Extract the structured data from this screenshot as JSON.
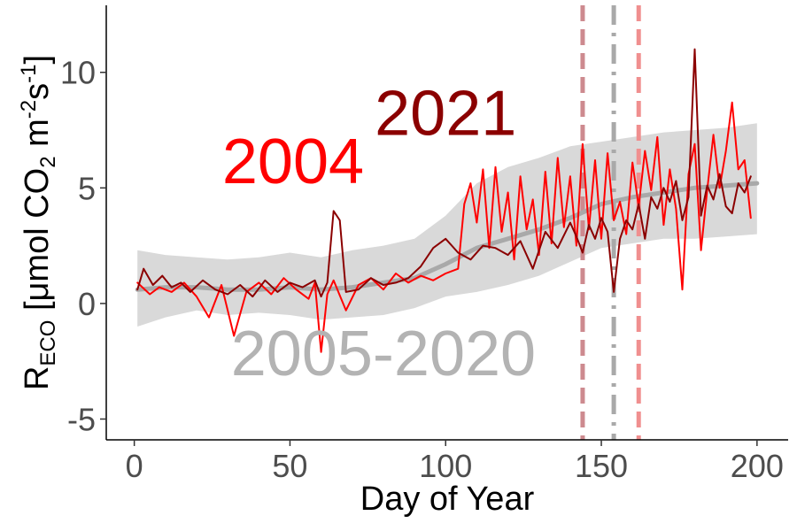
{
  "chart_data": {
    "type": "line",
    "xlabel": "Day of Year",
    "ylabel": {
      "main": "R",
      "sub": "ECO",
      "unit_open": " [μmol  CO",
      "co2_sub": "2",
      "unit_m": "  m",
      "m_sup": "-2",
      "unit_s": "s",
      "s_sup": "-1",
      "unit_close": "]"
    },
    "xlim": [
      -9,
      210
    ],
    "ylim": [
      -5.9,
      12.9
    ],
    "x_ticks": [
      0,
      50,
      100,
      150,
      200
    ],
    "x_tick_labels": [
      "0",
      "50",
      "100",
      "150",
      "200"
    ],
    "y_ticks": [
      -5,
      0,
      5,
      10
    ],
    "y_tick_labels": [
      "-5",
      "0",
      "5",
      "10"
    ],
    "grid": false,
    "annotations": [
      {
        "text": "2021",
        "x": 100,
        "y": 7.3,
        "color": "#8b0000"
      },
      {
        "text": "2004",
        "x": 51,
        "y": 5.2,
        "color": "#ff0000"
      },
      {
        "text": "2005-2020",
        "x": 80,
        "y": -3.1,
        "color": "#b3b3b3"
      }
    ],
    "vlines": [
      {
        "x": 144,
        "color": "#cd8a8f",
        "style": "dashed"
      },
      {
        "x": 154,
        "color": "#a9a9a9",
        "style": "dotdash"
      },
      {
        "x": 162,
        "color": "#f08f8f",
        "style": "dashed"
      }
    ],
    "band": {
      "name": "2005-2020",
      "color": "#d9d9d9",
      "x": [
        1,
        10,
        20,
        30,
        40,
        50,
        60,
        70,
        80,
        90,
        100,
        110,
        120,
        130,
        140,
        150,
        160,
        170,
        180,
        190,
        200
      ],
      "lower": [
        -1.0,
        -0.6,
        -0.3,
        -0.5,
        -0.4,
        -0.5,
        -0.7,
        -0.6,
        -0.5,
        -0.2,
        0.3,
        0.5,
        0.8,
        1.2,
        1.8,
        2.4,
        2.6,
        2.8,
        2.8,
        2.9,
        3.0
      ],
      "upper": [
        2.3,
        2.1,
        2.0,
        1.9,
        2.0,
        2.2,
        2.0,
        2.3,
        2.5,
        2.8,
        3.8,
        5.2,
        5.9,
        6.3,
        6.8,
        7.0,
        7.2,
        7.4,
        7.5,
        7.6,
        7.8
      ]
    },
    "series": [
      {
        "name": "2005-2020",
        "color": "#a9a9a9",
        "width": 5,
        "x": [
          1,
          10,
          20,
          30,
          40,
          50,
          60,
          70,
          80,
          90,
          100,
          110,
          120,
          130,
          140,
          150,
          160,
          170,
          180,
          190,
          200
        ],
        "values": [
          0.6,
          0.7,
          0.7,
          0.6,
          0.6,
          0.7,
          0.6,
          0.7,
          0.9,
          1.1,
          1.7,
          2.4,
          2.8,
          3.2,
          3.7,
          4.3,
          4.6,
          4.8,
          5.0,
          5.1,
          5.2
        ]
      },
      {
        "name": "2004",
        "color": "#ff0000",
        "width": 2,
        "x": [
          1,
          5,
          8,
          12,
          16,
          20,
          24,
          28,
          32,
          36,
          40,
          44,
          48,
          52,
          56,
          58,
          60,
          62,
          64,
          68,
          72,
          76,
          80,
          84,
          88,
          92,
          96,
          100,
          104,
          106,
          108,
          110,
          112,
          114,
          116,
          118,
          120,
          122,
          124,
          126,
          128,
          130,
          132,
          134,
          136,
          138,
          140,
          142,
          144,
          146,
          148,
          150,
          152,
          154,
          156,
          158,
          160,
          162,
          164,
          166,
          168,
          170,
          172,
          174,
          176,
          178,
          180,
          182,
          184,
          186,
          188,
          190,
          192,
          194,
          196,
          198
        ],
        "values": [
          0.9,
          0.4,
          0.7,
          0.5,
          0.9,
          0.3,
          -0.6,
          0.8,
          -1.4,
          0.5,
          0.9,
          0.4,
          1.1,
          0.6,
          0.2,
          0.9,
          -2.1,
          0.4,
          1.0,
          -0.3,
          0.8,
          1.1,
          0.6,
          1.3,
          0.9,
          1.2,
          1.0,
          1.3,
          1.5,
          4.3,
          5.2,
          3.5,
          5.8,
          2.4,
          5.9,
          3.1,
          4.8,
          1.9,
          5.5,
          3.2,
          4.5,
          2.1,
          5.7,
          2.6,
          6.3,
          3.3,
          5.5,
          2.5,
          6.9,
          3.2,
          6.2,
          2.8,
          6.5,
          3.6,
          4.4,
          3.0,
          6.1,
          4.2,
          6.6,
          4.9,
          7.2,
          3.4,
          5.8,
          4.1,
          0.6,
          5.6,
          6.9,
          2.3,
          4.9,
          7.3,
          5.0,
          6.6,
          8.7,
          5.8,
          6.2,
          3.7
        ]
      },
      {
        "name": "2021",
        "color": "#8b0000",
        "width": 2,
        "x": [
          1,
          3,
          6,
          9,
          12,
          15,
          18,
          22,
          26,
          30,
          34,
          38,
          42,
          46,
          50,
          54,
          58,
          60,
          62,
          64,
          66,
          68,
          72,
          76,
          80,
          84,
          88,
          92,
          96,
          100,
          104,
          108,
          112,
          116,
          120,
          124,
          128,
          132,
          136,
          140,
          142,
          144,
          146,
          148,
          150,
          152,
          154,
          156,
          158,
          160,
          162,
          164,
          166,
          168,
          170,
          172,
          174,
          176,
          178,
          180,
          182,
          184,
          186,
          188,
          190,
          192,
          194,
          196,
          198
        ],
        "values": [
          0.6,
          1.5,
          0.8,
          1.2,
          0.7,
          0.9,
          0.5,
          1.0,
          0.6,
          0.4,
          0.8,
          0.3,
          1.0,
          0.5,
          0.9,
          0.7,
          1.0,
          0.3,
          0.9,
          4.0,
          3.6,
          0.5,
          0.6,
          1.1,
          0.8,
          0.9,
          1.1,
          1.6,
          2.4,
          2.8,
          2.2,
          1.9,
          2.5,
          2.4,
          2.1,
          2.7,
          1.5,
          3.1,
          2.4,
          3.5,
          2.9,
          2.2,
          3.4,
          2.8,
          3.7,
          3.1,
          0.5,
          2.8,
          3.6,
          3.2,
          4.3,
          2.8,
          4.6,
          4.1,
          5.0,
          4.4,
          5.3,
          3.6,
          4.6,
          11.0,
          3.8,
          5.1,
          4.5,
          5.6,
          4.2,
          3.9,
          5.2,
          4.8,
          5.5
        ]
      }
    ]
  }
}
